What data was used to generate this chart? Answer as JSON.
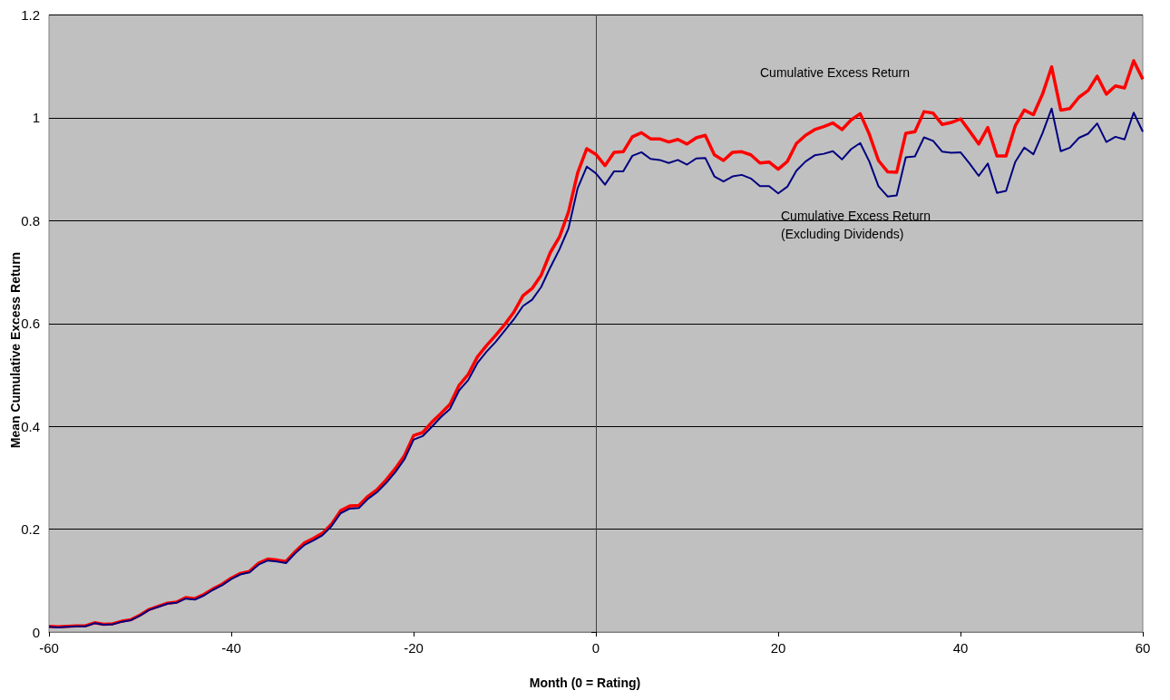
{
  "chart_data": {
    "type": "line",
    "xlabel": "Month (0 = Rating)",
    "ylabel": "Mean Cumulative Excess Return",
    "x": [
      -60,
      -59,
      -58,
      -57,
      -56,
      -55,
      -54,
      -53,
      -52,
      -51,
      -50,
      -49,
      -48,
      -47,
      -46,
      -45,
      -44,
      -43,
      -42,
      -41,
      -40,
      -39,
      -38,
      -37,
      -36,
      -35,
      -34,
      -33,
      -32,
      -31,
      -30,
      -29,
      -28,
      -27,
      -26,
      -25,
      -24,
      -23,
      -22,
      -21,
      -20,
      -19,
      -18,
      -17,
      -16,
      -15,
      -14,
      -13,
      -12,
      -11,
      -10,
      -9,
      -8,
      -7,
      -6,
      -5,
      -4,
      -3,
      -2,
      -1,
      0,
      1,
      2,
      3,
      4,
      5,
      6,
      7,
      8,
      9,
      10,
      11,
      12,
      13,
      14,
      15,
      16,
      17,
      18,
      19,
      20,
      21,
      22,
      23,
      24,
      25,
      26,
      27,
      28,
      29,
      30,
      31,
      32,
      33,
      34,
      35,
      36,
      37,
      38,
      39,
      40,
      41,
      42,
      43,
      44,
      45,
      46,
      47,
      48,
      49,
      50,
      51,
      52,
      53,
      54,
      55,
      56,
      57,
      58,
      59,
      60
    ],
    "series": [
      {
        "name": "Cumulative Excess Return",
        "color": "#ff0000",
        "values": [
          0.011,
          0.01,
          0.011,
          0.012,
          0.012,
          0.018,
          0.015,
          0.016,
          0.021,
          0.024,
          0.033,
          0.044,
          0.05,
          0.056,
          0.058,
          0.067,
          0.065,
          0.073,
          0.084,
          0.093,
          0.105,
          0.114,
          0.118,
          0.134,
          0.142,
          0.14,
          0.137,
          0.156,
          0.173,
          0.182,
          0.192,
          0.21,
          0.236,
          0.245,
          0.246,
          0.264,
          0.277,
          0.296,
          0.318,
          0.343,
          0.382,
          0.388,
          0.408,
          0.425,
          0.443,
          0.48,
          0.501,
          0.535,
          0.557,
          0.577,
          0.598,
          0.622,
          0.654,
          0.668,
          0.694,
          0.738,
          0.768,
          0.817,
          0.893,
          0.94,
          0.929,
          0.907,
          0.933,
          0.934,
          0.963,
          0.971,
          0.959,
          0.959,
          0.953,
          0.958,
          0.949,
          0.961,
          0.966,
          0.928,
          0.917,
          0.933,
          0.934,
          0.928,
          0.912,
          0.914,
          0.9,
          0.915,
          0.95,
          0.966,
          0.977,
          0.983,
          0.99,
          0.977,
          0.996,
          1.008,
          0.968,
          0.917,
          0.895,
          0.894,
          0.97,
          0.973,
          1.012,
          1.009,
          0.987,
          0.991,
          0.998,
          0.974,
          0.949,
          0.981,
          0.926,
          0.926,
          0.984,
          1.015,
          1.006,
          1.046,
          1.099,
          1.015,
          1.018,
          1.04,
          1.053,
          1.081,
          1.046,
          1.062,
          1.058,
          1.111,
          1.075
        ]
      },
      {
        "name": "Cumulative Excess Return (Excluding Dividends)",
        "color": "#000080",
        "values": [
          0.01,
          0.009,
          0.01,
          0.011,
          0.011,
          0.017,
          0.014,
          0.015,
          0.02,
          0.023,
          0.032,
          0.043,
          0.049,
          0.055,
          0.057,
          0.065,
          0.063,
          0.071,
          0.082,
          0.091,
          0.103,
          0.112,
          0.116,
          0.131,
          0.139,
          0.137,
          0.134,
          0.153,
          0.169,
          0.178,
          0.188,
          0.206,
          0.231,
          0.24,
          0.241,
          0.259,
          0.272,
          0.29,
          0.311,
          0.336,
          0.374,
          0.381,
          0.399,
          0.418,
          0.434,
          0.47,
          0.49,
          0.523,
          0.545,
          0.564,
          0.586,
          0.608,
          0.634,
          0.646,
          0.671,
          0.709,
          0.744,
          0.785,
          0.863,
          0.905,
          0.892,
          0.87,
          0.896,
          0.896,
          0.926,
          0.933,
          0.92,
          0.918,
          0.912,
          0.918,
          0.909,
          0.921,
          0.922,
          0.886,
          0.876,
          0.886,
          0.889,
          0.882,
          0.867,
          0.867,
          0.853,
          0.866,
          0.897,
          0.915,
          0.927,
          0.93,
          0.935,
          0.919,
          0.939,
          0.951,
          0.915,
          0.867,
          0.847,
          0.849,
          0.923,
          0.925,
          0.962,
          0.955,
          0.934,
          0.932,
          0.933,
          0.911,
          0.887,
          0.911,
          0.854,
          0.858,
          0.914,
          0.942,
          0.929,
          0.97,
          1.018,
          0.935,
          0.942,
          0.961,
          0.969,
          0.989,
          0.953,
          0.963,
          0.958,
          1.01,
          0.973
        ]
      }
    ],
    "xlim": [
      -60,
      60
    ],
    "xticks": [
      -60,
      -40,
      -20,
      0,
      20,
      40,
      60
    ],
    "ylim": [
      0,
      1.2
    ],
    "yticks": [
      0,
      0.2,
      0.4,
      0.6,
      0.8,
      1,
      1.2
    ],
    "grid": "y",
    "legend": false,
    "marker": "none",
    "line_style": "solid"
  }
}
